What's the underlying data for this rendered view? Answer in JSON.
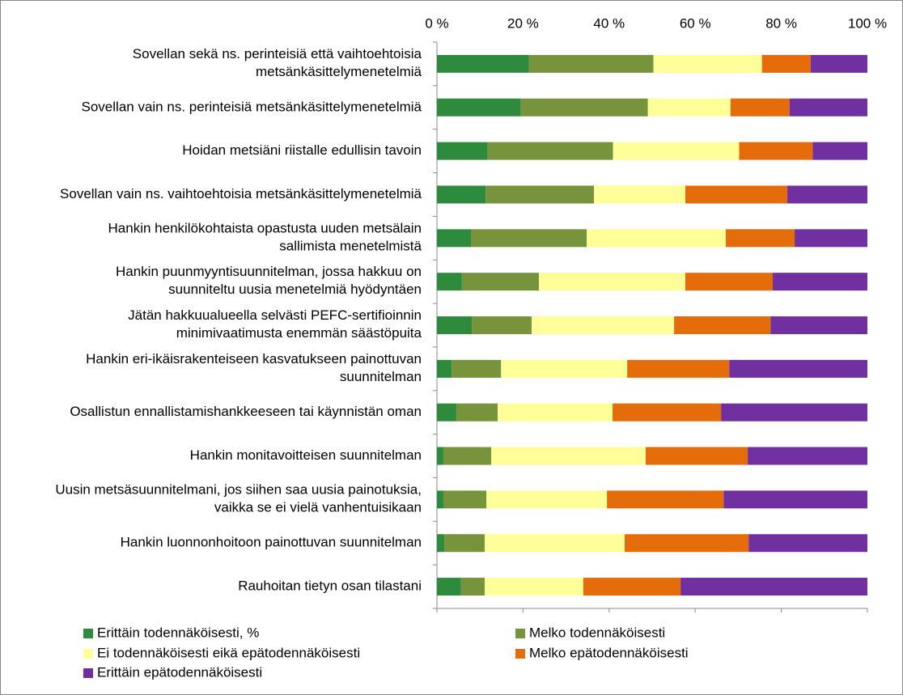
{
  "chart_data": {
    "type": "stacked-bar-horizontal",
    "categories": [
      "Sovellan sekä ns. perinteisiä että vaihtoehtoisia\nmetsänkäsittelymenetelmiä",
      "Sovellan vain ns. perinteisiä metsänkäsittelymenetelmiä",
      "Hoidan metsiäni riistalle edullisin tavoin",
      "Sovellan vain ns. vaihtoehtoisia metsänkäsittelymenetelmiä",
      "Hankin henkilökohtaista opastusta uuden metsälain\nsallimista menetelmistä",
      "Hankin puunmyyntisuunnitelman, jossa hakkuu on\nsuunniteltu uusia menetelmiä hyödyntäen",
      "Jätän hakkuualueella selvästi PEFC-sertifioinnin\nminimivaatimusta enemmän säästöpuita",
      "Hankin eri-ikäisrakenteiseen kasvatukseen painottuvan\nsuunnitelman",
      "Osallistun ennallistamishankkeeseen tai käynnistän oman",
      "Hankin monitavoitteisen suunnitelman",
      "Uusin metsäsuunnitelmani, jos siihen saa uusia painotuksia,\nvaikka se ei vielä vanhentuisikaan",
      "Hankin luonnonhoitoon painottuvan suunnitelman",
      "Rauhoitan tietyn osan tilastani"
    ],
    "series": [
      {
        "name": "Erittäin todennäköisesti, %",
        "color": "#2e8b3e",
        "values": [
          21.4,
          19.5,
          11.8,
          11.3,
          7.9,
          5.8,
          8.1,
          3.4,
          4.5,
          1.5,
          1.5,
          1.7,
          5.6
        ]
      },
      {
        "name": "Melko todennäköisesti",
        "color": "#77933c",
        "values": [
          28.9,
          29.5,
          29.1,
          25.2,
          26.9,
          17.9,
          13.9,
          11.5,
          9.6,
          11.1,
          10.0,
          9.4,
          5.5
        ]
      },
      {
        "name": "Ei todennäköisesti eikä epätodennäköisesti",
        "color": "#ffff99",
        "values": [
          25.2,
          19.2,
          29.3,
          21.2,
          32.3,
          34.0,
          33.1,
          29.3,
          26.7,
          35.9,
          28.0,
          32.5,
          22.9
        ]
      },
      {
        "name": "Melko epätodennäköisesti",
        "color": "#e46c0a",
        "values": [
          11.3,
          13.7,
          17.1,
          23.7,
          16.0,
          20.3,
          22.4,
          23.7,
          25.2,
          23.7,
          27.1,
          28.8,
          22.6
        ]
      },
      {
        "name": "Erittäin epätodennäköisesti",
        "color": "#7030a0",
        "values": [
          13.2,
          18.1,
          12.7,
          18.6,
          16.9,
          22.0,
          22.5,
          32.1,
          34.0,
          27.8,
          33.4,
          27.6,
          43.4
        ]
      }
    ],
    "xlim": [
      0,
      100
    ],
    "xticks": [
      {
        "value": 0,
        "label": "0 %"
      },
      {
        "value": 20,
        "label": "20 %"
      },
      {
        "value": 40,
        "label": "40 %"
      },
      {
        "value": 60,
        "label": "60 %"
      },
      {
        "value": 80,
        "label": "80 %"
      },
      {
        "value": 100,
        "label": "100 %"
      }
    ],
    "legend": "bottom"
  }
}
